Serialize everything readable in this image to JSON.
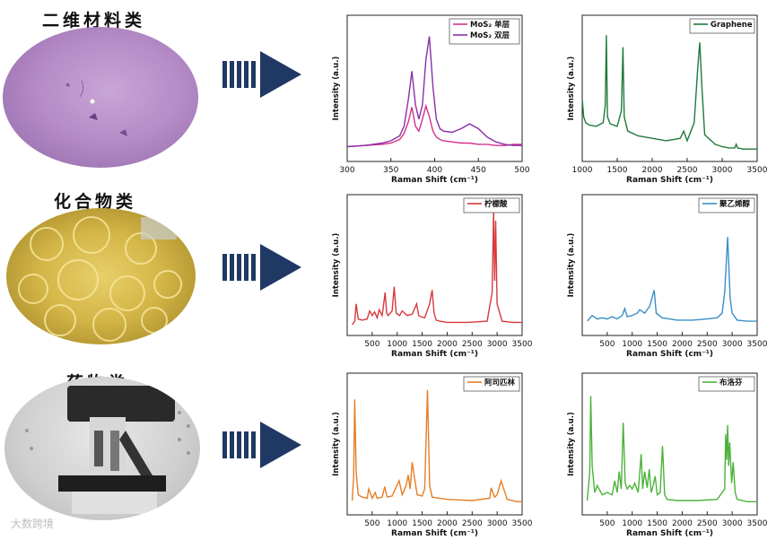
{
  "rows": [
    {
      "title": "二维材料类",
      "photo_kind": "2D material optical micrograph"
    },
    {
      "title": "化合物类",
      "photo_kind": "compound crystals"
    },
    {
      "title": "药物类",
      "photo_kind": "microscope"
    }
  ],
  "watermark": "大数跨境",
  "colors": {
    "arrow": "#1f3864",
    "series_pink": "#d4318d",
    "series_purple": "#8b2fa8",
    "series_darkgreen": "#1f7a3a",
    "series_red": "#d9393c",
    "series_blue": "#3a8fc6",
    "series_orange": "#e57e26",
    "series_green": "#4cb33a"
  },
  "chart_data": [
    {
      "id": "mos2",
      "type": "line",
      "xlabel": "Raman Shift (cm⁻¹)",
      "ylabel": "Intensity (a.u.)",
      "xlim": [
        300,
        500
      ],
      "xticks": [
        300,
        350,
        400,
        450,
        500
      ],
      "ylim": [
        0,
        1
      ],
      "legend_position": "top-right",
      "series": [
        {
          "name": "MoS₂ 单层",
          "color": "#d4318d",
          "x": [
            300,
            320,
            340,
            350,
            360,
            365,
            370,
            374,
            378,
            382,
            386,
            390,
            394,
            398,
            402,
            406,
            410,
            420,
            430,
            440,
            450,
            460,
            470,
            480,
            490,
            500
          ],
          "y": [
            0.05,
            0.06,
            0.07,
            0.08,
            0.11,
            0.16,
            0.26,
            0.38,
            0.22,
            0.18,
            0.28,
            0.39,
            0.3,
            0.18,
            0.13,
            0.11,
            0.1,
            0.09,
            0.08,
            0.08,
            0.07,
            0.07,
            0.06,
            0.06,
            0.07,
            0.07
          ]
        },
        {
          "name": "MoS₂ 双层",
          "color": "#8b2fa8",
          "x": [
            300,
            320,
            340,
            350,
            360,
            365,
            370,
            374,
            378,
            382,
            386,
            390,
            394,
            398,
            402,
            406,
            410,
            420,
            430,
            440,
            450,
            460,
            470,
            480,
            490,
            500
          ],
          "y": [
            0.05,
            0.06,
            0.08,
            0.1,
            0.14,
            0.22,
            0.45,
            0.68,
            0.4,
            0.28,
            0.4,
            0.78,
            0.97,
            0.55,
            0.28,
            0.2,
            0.18,
            0.17,
            0.2,
            0.24,
            0.2,
            0.13,
            0.09,
            0.07,
            0.06,
            0.06
          ]
        }
      ]
    },
    {
      "id": "graphene",
      "type": "line",
      "xlabel": "Raman Shift (cm⁻¹)",
      "ylabel": "Intensity (a.u.)",
      "xlim": [
        1000,
        3500
      ],
      "xticks": [
        1000,
        1500,
        2000,
        2500,
        3000,
        3500
      ],
      "ylim": [
        0,
        1
      ],
      "legend_position": "top-right",
      "series": [
        {
          "name": "Graphene",
          "color": "#1f7a3a",
          "x": [
            1000,
            1020,
            1050,
            1100,
            1200,
            1300,
            1330,
            1345,
            1360,
            1400,
            1500,
            1560,
            1582,
            1600,
            1650,
            1800,
            2000,
            2200,
            2400,
            2450,
            2500,
            2600,
            2650,
            2680,
            2710,
            2750,
            2900,
            3000,
            3100,
            3180,
            3200,
            3220,
            3300,
            3400,
            3500
          ],
          "y": [
            0.45,
            0.3,
            0.25,
            0.23,
            0.22,
            0.25,
            0.4,
            0.98,
            0.3,
            0.24,
            0.22,
            0.35,
            0.88,
            0.3,
            0.18,
            0.14,
            0.12,
            0.1,
            0.12,
            0.18,
            0.1,
            0.25,
            0.7,
            0.92,
            0.55,
            0.15,
            0.07,
            0.05,
            0.04,
            0.04,
            0.07,
            0.04,
            0.03,
            0.03,
            0.03
          ]
        }
      ]
    },
    {
      "id": "citric-acid",
      "type": "line",
      "xlabel": "Raman Shift (cm⁻¹)",
      "ylabel": "Intensity (a.u.)",
      "xlim": [
        0,
        3500
      ],
      "xticks": [
        500,
        1000,
        1500,
        2000,
        2500,
        3000,
        3500
      ],
      "ylim": [
        0,
        1
      ],
      "legend_position": "top-right",
      "series": [
        {
          "name": "柠檬酸",
          "color": "#d9393c",
          "x": [
            100,
            150,
            180,
            220,
            300,
            400,
            450,
            500,
            550,
            600,
            640,
            700,
            760,
            790,
            820,
            900,
            940,
            980,
            1050,
            1100,
            1200,
            1300,
            1390,
            1430,
            1470,
            1550,
            1650,
            1700,
            1740,
            1780,
            1850,
            2000,
            2400,
            2800,
            2900,
            2930,
            2950,
            2970,
            3000,
            3100,
            3300,
            3500
          ],
          "y": [
            0.02,
            0.05,
            0.2,
            0.07,
            0.06,
            0.07,
            0.14,
            0.1,
            0.13,
            0.08,
            0.15,
            0.1,
            0.3,
            0.12,
            0.1,
            0.14,
            0.35,
            0.12,
            0.1,
            0.14,
            0.1,
            0.11,
            0.2,
            0.1,
            0.09,
            0.08,
            0.2,
            0.32,
            0.12,
            0.06,
            0.05,
            0.04,
            0.04,
            0.05,
            0.3,
            1.0,
            0.4,
            0.92,
            0.2,
            0.05,
            0.04,
            0.04
          ]
        }
      ]
    },
    {
      "id": "pva",
      "type": "line",
      "xlabel": "Raman Shift (cm⁻¹)",
      "ylabel": "Intensity (a.u.)",
      "xlim": [
        0,
        3500
      ],
      "xticks": [
        500,
        1000,
        1500,
        2000,
        2500,
        3000,
        3500
      ],
      "ylim": [
        0,
        1
      ],
      "legend_position": "top-right",
      "series": [
        {
          "name": "聚乙烯醇",
          "color": "#3a8fc6",
          "x": [
            100,
            200,
            300,
            400,
            500,
            600,
            700,
            800,
            850,
            900,
            1000,
            1100,
            1150,
            1250,
            1350,
            1440,
            1480,
            1600,
            1750,
            1900,
            2200,
            2500,
            2700,
            2800,
            2850,
            2910,
            2960,
            3000,
            3100,
            3300,
            3500
          ],
          "y": [
            0.05,
            0.1,
            0.07,
            0.08,
            0.07,
            0.09,
            0.07,
            0.1,
            0.16,
            0.09,
            0.1,
            0.12,
            0.15,
            0.12,
            0.18,
            0.32,
            0.12,
            0.08,
            0.07,
            0.06,
            0.06,
            0.07,
            0.08,
            0.12,
            0.3,
            0.78,
            0.25,
            0.12,
            0.06,
            0.05,
            0.05
          ]
        }
      ]
    },
    {
      "id": "aspirin",
      "type": "line",
      "xlabel": "Raman Shift (cm⁻¹)",
      "ylabel": "Intensity (a.u.)",
      "xlim": [
        0,
        3500
      ],
      "xticks": [
        500,
        1000,
        1500,
        2000,
        2500,
        3000,
        3500
      ],
      "ylim": [
        0,
        1
      ],
      "legend_position": "top-right",
      "series": [
        {
          "name": "阿司匹林",
          "color": "#e57e26",
          "x": [
            100,
            130,
            150,
            180,
            220,
            300,
            400,
            430,
            500,
            560,
            600,
            700,
            750,
            800,
            900,
            1040,
            1100,
            1180,
            1220,
            1260,
            1300,
            1400,
            1500,
            1550,
            1606,
            1650,
            1700,
            2000,
            2500,
            2850,
            2880,
            2950,
            3000,
            3080,
            3200,
            3400,
            3500
          ],
          "y": [
            0.05,
            0.25,
            0.92,
            0.3,
            0.1,
            0.08,
            0.07,
            0.15,
            0.07,
            0.12,
            0.07,
            0.08,
            0.17,
            0.08,
            0.09,
            0.22,
            0.1,
            0.18,
            0.27,
            0.15,
            0.38,
            0.1,
            0.09,
            0.15,
            1.0,
            0.18,
            0.08,
            0.06,
            0.05,
            0.07,
            0.16,
            0.08,
            0.1,
            0.22,
            0.06,
            0.04,
            0.04
          ]
        }
      ]
    },
    {
      "id": "ibuprofen",
      "type": "line",
      "xlabel": "Raman Shift (cm⁻¹)",
      "ylabel": "Intensity (a.u.)",
      "xlim": [
        0,
        3500
      ],
      "xticks": [
        500,
        1000,
        1500,
        2000,
        2500,
        3000,
        3500
      ],
      "ylim": [
        0,
        1
      ],
      "legend_position": "top-right",
      "series": [
        {
          "name": "布洛芬",
          "color": "#4cb33a",
          "x": [
            100,
            150,
            170,
            200,
            250,
            300,
            400,
            500,
            600,
            650,
            700,
            740,
            780,
            820,
            860,
            900,
            950,
            1000,
            1050,
            1120,
            1180,
            1210,
            1250,
            1300,
            1340,
            1380,
            1420,
            1460,
            1500,
            1560,
            1607,
            1650,
            1700,
            1900,
            2300,
            2700,
            2850,
            2870,
            2890,
            2910,
            2930,
            2950,
            2990,
            3020,
            3060,
            3100,
            3300,
            3500
          ],
          "y": [
            0.05,
            0.3,
            0.95,
            0.35,
            0.12,
            0.18,
            0.1,
            0.12,
            0.1,
            0.22,
            0.12,
            0.3,
            0.15,
            0.72,
            0.2,
            0.15,
            0.18,
            0.15,
            0.2,
            0.12,
            0.45,
            0.15,
            0.3,
            0.16,
            0.32,
            0.12,
            0.18,
            0.26,
            0.1,
            0.12,
            0.52,
            0.1,
            0.06,
            0.05,
            0.05,
            0.06,
            0.15,
            0.62,
            0.4,
            0.7,
            0.35,
            0.55,
            0.2,
            0.38,
            0.12,
            0.06,
            0.04,
            0.04
          ]
        }
      ]
    }
  ]
}
